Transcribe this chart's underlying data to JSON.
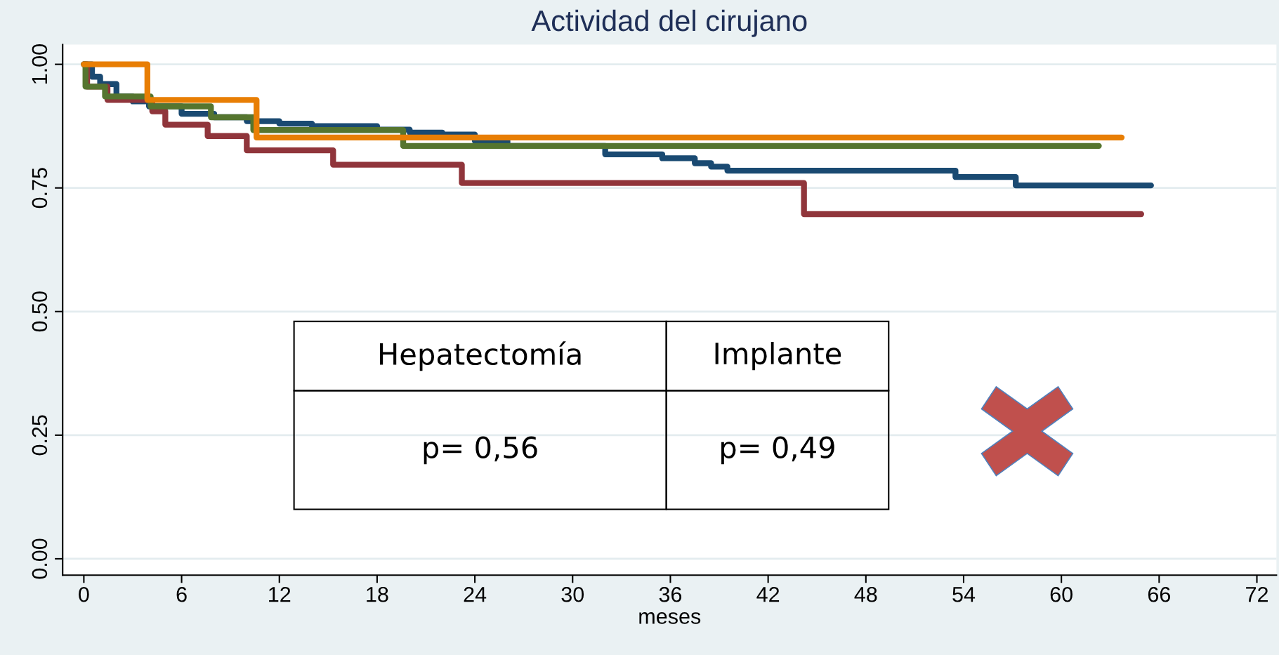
{
  "chart_data": {
    "type": "step",
    "title": "Actividad del cirujano",
    "xlabel": "meses",
    "xlim": [
      -1.3,
      73.2
    ],
    "ylim": [
      -0.033,
      1.04
    ],
    "xticks": [
      0,
      6,
      12,
      18,
      24,
      30,
      36,
      42,
      48,
      54,
      60,
      66,
      72
    ],
    "yticks": [
      {
        "value": 0,
        "label": "0.00"
      },
      {
        "value": 0.25,
        "label": "0.25"
      },
      {
        "value": 0.5,
        "label": "0.50"
      },
      {
        "value": 0.75,
        "label": "0.75"
      },
      {
        "value": 1,
        "label": "1.00"
      }
    ],
    "grid": "y",
    "legend": false,
    "line_style": "solid",
    "marker": "none",
    "annotations": [
      "Hepatectomía",
      "Implante",
      "p= 0,56",
      "p= 0,49"
    ],
    "series": [
      {
        "color": "#1a4a72",
        "x": [
          0,
          0.5,
          1,
          2,
          3,
          4,
          6,
          8,
          10,
          12,
          14,
          18,
          20,
          22,
          24,
          26,
          32,
          35.5,
          37.5,
          38.5,
          39.5,
          53.5,
          57.2,
          65.5
        ],
        "values": [
          1,
          0.975,
          0.96,
          0.935,
          0.925,
          0.915,
          0.9,
          0.893,
          0.885,
          0.88,
          0.875,
          0.868,
          0.862,
          0.858,
          0.845,
          0.835,
          0.818,
          0.81,
          0.8,
          0.793,
          0.785,
          0.772,
          0.755,
          0.755
        ]
      },
      {
        "color": "#90353b",
        "x": [
          0,
          0.2,
          1.45,
          4.2,
          5.0,
          7.6,
          10.0,
          15.3,
          23.2,
          44.2,
          64.9
        ],
        "values": [
          1,
          0.955,
          0.928,
          0.905,
          0.878,
          0.855,
          0.826,
          0.797,
          0.76,
          0.697,
          0.697
        ]
      },
      {
        "color": "#55752f",
        "x": [
          0,
          0.1,
          1.3,
          4.1,
          7.8,
          10.4,
          19.6,
          62.3
        ],
        "values": [
          1,
          0.955,
          0.935,
          0.915,
          0.893,
          0.867,
          0.835,
          0.835
        ]
      },
      {
        "color": "#e87e04",
        "x": [
          0,
          3.9,
          10.6,
          63.7
        ],
        "values": [
          1,
          0.928,
          0.852,
          0.852
        ]
      }
    ]
  }
}
